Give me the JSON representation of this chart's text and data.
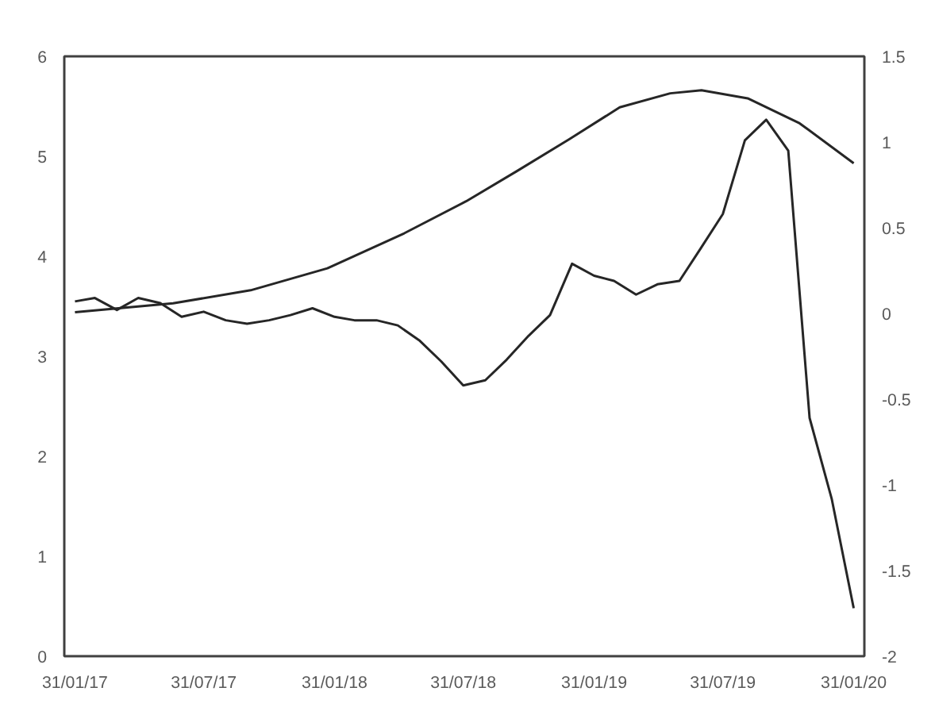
{
  "chart_data": {
    "type": "line",
    "grid": false,
    "marker": "none",
    "line_style": "solid",
    "xlim": [
      "2017-01-16",
      "2020-02-15"
    ],
    "xticks": [
      {
        "value": "2017-01-31",
        "label": "31/01/17"
      },
      {
        "value": "2017-07-31",
        "label": "31/07/17"
      },
      {
        "value": "2018-01-31",
        "label": "31/01/18"
      },
      {
        "value": "2018-07-31",
        "label": "31/07/18"
      },
      {
        "value": "2019-01-31",
        "label": "31/01/19"
      },
      {
        "value": "2019-07-31",
        "label": "31/07/19"
      },
      {
        "value": "2020-01-31",
        "label": "31/01/20"
      }
    ],
    "ylim": [
      0,
      6
    ],
    "yticks": [
      0,
      1,
      2,
      3,
      4,
      5,
      6
    ],
    "y2lim": [
      -2,
      1.5
    ],
    "y2ticks": [
      -2,
      -1.5,
      -1,
      -0.5,
      0,
      0.5,
      1,
      1.5
    ],
    "series": [
      {
        "color": "#262626",
        "x": [
          "2017-01-31",
          "2017-06-18",
          "2017-10-05",
          "2018-01-21",
          "2018-05-09",
          "2018-08-04",
          "2018-10-14",
          "2018-12-27",
          "2019-03-08",
          "2019-05-18",
          "2019-07-01",
          "2019-09-04",
          "2019-11-16",
          "2020-01-31"
        ],
        "values": [
          3.44,
          3.53,
          3.66,
          3.88,
          4.23,
          4.55,
          4.85,
          5.17,
          5.49,
          5.63,
          5.66,
          5.58,
          5.33,
          4.93
        ]
      },
      {
        "color": "#262626",
        "axis": "y2",
        "x": [
          "2017-01-31",
          "2017-02-28",
          "2017-03-31",
          "2017-04-30",
          "2017-05-31",
          "2017-06-30",
          "2017-07-31",
          "2017-08-31",
          "2017-09-30",
          "2017-10-31",
          "2017-11-30",
          "2017-12-31",
          "2018-01-31",
          "2018-02-28",
          "2018-03-31",
          "2018-04-30",
          "2018-05-31",
          "2018-06-30",
          "2018-07-31",
          "2018-08-31",
          "2018-09-30",
          "2018-10-31",
          "2018-11-30",
          "2018-12-31",
          "2019-01-31",
          "2019-02-28",
          "2019-03-31",
          "2019-04-30",
          "2019-05-31",
          "2019-06-30",
          "2019-07-31",
          "2019-08-31",
          "2019-09-30",
          "2019-10-31",
          "2019-11-30",
          "2019-12-31",
          "2020-01-31"
        ],
        "values": [
          0.07,
          0.09,
          0.02,
          0.09,
          0.06,
          -0.02,
          0.01,
          -0.04,
          -0.06,
          -0.04,
          -0.01,
          0.03,
          -0.02,
          -0.04,
          -0.04,
          -0.07,
          -0.16,
          -0.28,
          -0.42,
          -0.39,
          -0.27,
          -0.13,
          -0.01,
          0.29,
          0.22,
          0.19,
          0.11,
          0.17,
          0.19,
          0.38,
          0.58,
          1.01,
          1.13,
          0.95,
          -0.61,
          -1.08,
          -1.72
        ]
      }
    ]
  }
}
